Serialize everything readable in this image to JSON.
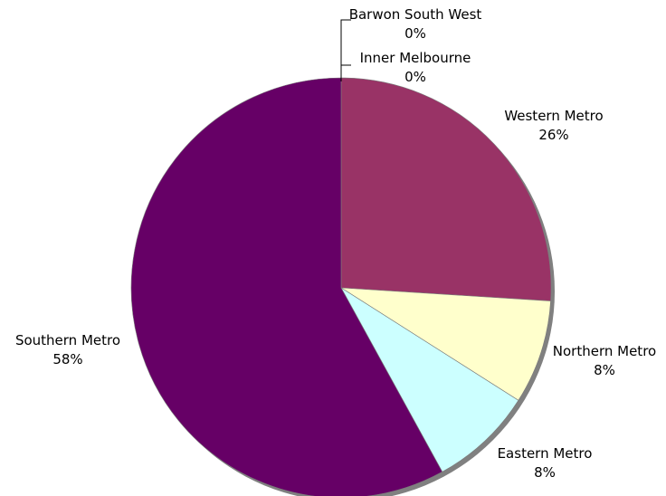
{
  "chart_data": {
    "type": "pie",
    "title": "",
    "start": "12 o'clock",
    "direction": "clockwise",
    "shadow": true,
    "slices": [
      {
        "label": "Barwon South West",
        "value": 0,
        "percent_label": "0%",
        "color": "#ffffff"
      },
      {
        "label": "Inner Melbourne",
        "value": 0,
        "percent_label": "0%",
        "color": "#ffffff"
      },
      {
        "label": "Western Metro",
        "value": 26,
        "percent_label": "26%",
        "color": "#993366"
      },
      {
        "label": "Northern Metro",
        "value": 8,
        "percent_label": "8%",
        "color": "#ffffcc"
      },
      {
        "label": "Eastern Metro",
        "value": 8,
        "percent_label": "8%",
        "color": "#ccffff"
      },
      {
        "label": "Southern Metro",
        "value": 58,
        "percent_label": "58%",
        "color": "#660066"
      }
    ]
  }
}
